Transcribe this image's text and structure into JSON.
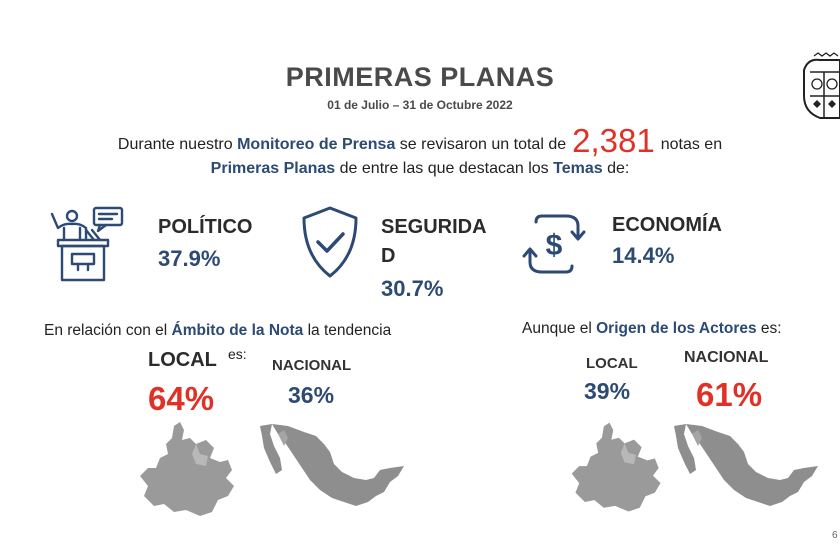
{
  "title": "PRIMERAS PLANAS",
  "date_range": "01 de Julio – 31 de Octubre 2022",
  "intro": {
    "part1": "Durante nuestro ",
    "monitoreo": "Monitoreo de Prensa",
    "part2": " se revisaron un total de",
    "total": "2,381",
    "part3": "notas en",
    "primeras": "Primeras Planas",
    "part4": " de entre las que destacan los ",
    "temas": "Temas",
    "part5": " de:"
  },
  "themes": [
    {
      "name": "POLÍTICO",
      "pct": "37.9%",
      "icon": "speaker-podium-icon"
    },
    {
      "name_line1": "SEGURIDA",
      "name_line2": "D",
      "pct": "30.7%",
      "icon": "shield-check-icon"
    },
    {
      "name": "ECONOMÍA",
      "pct": "14.4%",
      "icon": "dollar-exchange-icon"
    }
  ],
  "ambito": {
    "text1": "En relación con el ",
    "highlight": "Ámbito de la Nota",
    "text2": " la tendencia",
    "es": "es:",
    "local_label": "LOCAL",
    "local_pct": "64%",
    "nacional_label": "NACIONAL",
    "nacional_pct": "36%"
  },
  "origen": {
    "text1": "Aunque el ",
    "highlight": "Origen de los Actores",
    "text2": " es:",
    "local_label": "LOCAL",
    "local_pct": "39%",
    "nacional_label": "NACIONAL",
    "nacional_pct": "61%"
  },
  "page_number": "6",
  "colors": {
    "accent_blue": "#2c4a74",
    "accent_red": "#e03127",
    "map_gray": "#9a9a9a"
  }
}
